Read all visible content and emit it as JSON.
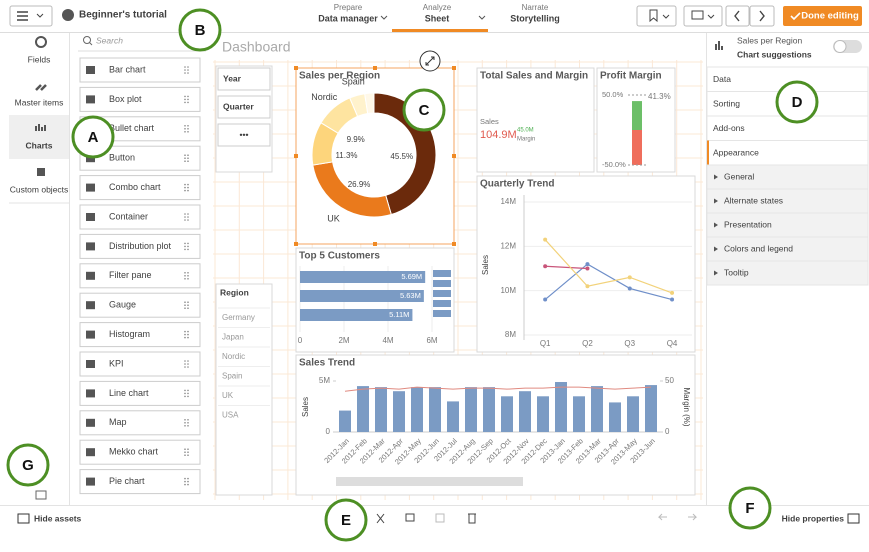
{
  "header": {
    "app": "Beginner's tutorial",
    "tabs": [
      {
        "step": "Prepare",
        "name": "Data manager"
      },
      {
        "step": "Analyze",
        "name": "Sheet"
      },
      {
        "step": "Narrate",
        "name": "Storytelling"
      }
    ],
    "done": "Done editing"
  },
  "nav": [
    "Fields",
    "Master items",
    "Charts",
    "Custom objects"
  ],
  "assets": {
    "search": "Search",
    "items": [
      "Bar chart",
      "Box plot",
      "Bullet chart",
      "Button",
      "Combo chart",
      "Container",
      "Distribution plot",
      "Filter pane",
      "Gauge",
      "Histogram",
      "KPI",
      "Line chart",
      "Map",
      "Mekko chart",
      "Pie chart"
    ]
  },
  "callouts": [
    "A",
    "B",
    "C",
    "D",
    "E",
    "F",
    "G"
  ],
  "sheet": {
    "title": "Dashboard",
    "filters": [
      "Year",
      "Quarter",
      "•••"
    ],
    "region": {
      "title": "Region",
      "values": [
        "Germany",
        "Japan",
        "Nordic",
        "Spain",
        "UK",
        "USA"
      ]
    }
  },
  "charts": [
    {
      "type": "donut",
      "title": "Sales per Region",
      "categories": [
        null,
        "UK",
        null,
        "Nordic",
        "Spain",
        null
      ],
      "values": [
        45.5,
        26.9,
        11.3,
        9.9,
        4.0,
        2.4
      ],
      "value_labels": [
        "45.5%",
        "26.9%",
        "11.3%",
        "9.9%",
        null,
        null
      ],
      "colors": [
        "#6b2a0c",
        "#ea7a1c",
        "#fdd57c",
        "#fee4a0",
        "#fff2cc",
        "#fff8e8"
      ]
    },
    {
      "type": "kpi",
      "title": "Total Sales and Margin",
      "label": "Sales",
      "value": "104.9M",
      "secondary": "45.0M",
      "secondary_label": "Margin"
    },
    {
      "type": "gauge",
      "title": "Profit Margin",
      "value": 41.3,
      "value_label": "41.3%",
      "ylim": [
        -50,
        50
      ],
      "yticks": [
        {
          "value": 50,
          "label": "50.0%"
        },
        {
          "value": -50,
          "label": "-50.0%"
        }
      ],
      "color": "#6cbf68",
      "range_color": "#ef6e5c"
    },
    {
      "type": "line",
      "title": "Quarterly Trend",
      "y_label": "Sales",
      "categories": [
        "Q1",
        "Q2",
        "Q3",
        "Q4"
      ],
      "series": [
        {
          "color": "#6f8fc9",
          "values": [
            9.6,
            11.2,
            10.1,
            9.6
          ]
        },
        {
          "color": "#c9557a",
          "values": [
            11.1,
            11.0,
            null,
            null
          ]
        },
        {
          "color": "#f2d27a",
          "values": [
            12.3,
            10.2,
            10.6,
            9.9
          ]
        }
      ],
      "ylim": [
        8,
        14
      ],
      "yticks": [
        {
          "value": 8,
          "label": "8M"
        },
        {
          "value": 10,
          "label": "10M"
        },
        {
          "value": 12,
          "label": "12M"
        },
        {
          "value": 14,
          "label": "14M"
        }
      ]
    },
    {
      "type": "hbar",
      "title": "Top 5 Customers",
      "values": [
        5.69,
        5.63,
        5.11
      ],
      "value_labels": [
        "5.69M",
        "5.63M",
        "5.11M"
      ],
      "xlim": [
        0,
        6
      ],
      "xticks": [
        0,
        {
          "value": 2,
          "label": "2M"
        },
        {
          "value": 4,
          "label": "4M"
        },
        {
          "value": 6,
          "label": "6M"
        }
      ],
      "color": "#7b9bc4"
    },
    {
      "type": "combo",
      "title": "Sales Trend",
      "y_label": "Sales",
      "y2_label": "Margin (%)",
      "categories": [
        "2012-Jan",
        "2012-Feb",
        "2012-Mar",
        "2012-Apr",
        "2012-May",
        "2012-Jun",
        "2012-Jul",
        "2012-Aug",
        "2012-Sep",
        "2012-Oct",
        "2012-Nov",
        "2012-Dec",
        "2013-Jan",
        "2013-Feb",
        "2013-Mar",
        "2013-Apr",
        "2013-May",
        "2013-Jun"
      ],
      "series": [
        {
          "type": "bar",
          "color": "#7b9bc4",
          "values": [
            2.1,
            4.5,
            4.4,
            4.0,
            4.4,
            4.4,
            3.0,
            4.4,
            4.4,
            3.5,
            4.0,
            3.5,
            4.9,
            3.5,
            4.5,
            2.9,
            3.5,
            4.6
          ]
        },
        {
          "type": "line",
          "axis": "y2",
          "color": "#e08a80",
          "values": [
            40,
            42,
            43,
            42,
            44,
            43,
            42,
            43,
            43,
            42,
            43,
            43,
            44,
            44,
            43,
            42,
            43,
            44
          ]
        }
      ],
      "ylim": [
        0,
        5
      ],
      "yticks": [
        0,
        {
          "value": 5,
          "label": "5M"
        }
      ],
      "y2lim": [
        0,
        50
      ],
      "y2ticks": [
        0,
        50
      ]
    }
  ],
  "properties": {
    "object": "Sales per Region",
    "suggestions": "Chart suggestions",
    "sections": [
      "Data",
      "Sorting",
      "Add-ons",
      "Appearance"
    ],
    "appearance": [
      "General",
      "Alternate states",
      "Presentation",
      "Colors and legend",
      "Tooltip"
    ]
  },
  "footer": {
    "hide_assets": "Hide assets",
    "hide_properties": "Hide properties"
  }
}
